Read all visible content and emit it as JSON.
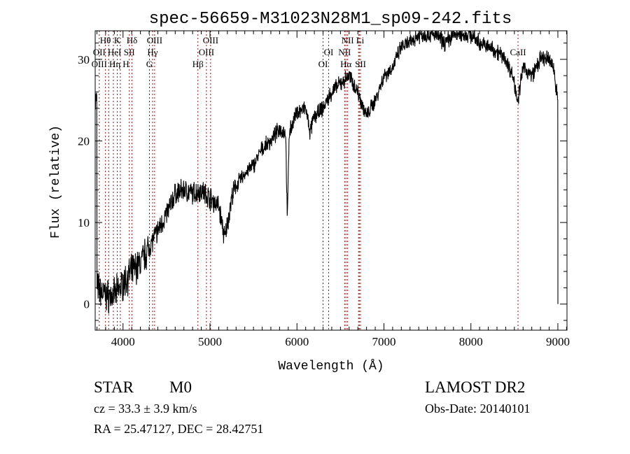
{
  "chart_data": {
    "type": "line",
    "title": "spec-56659-M31023N28M1_sp09-242.fits",
    "xlabel": "Wavelength (Å)",
    "ylabel": "Flux (relative)",
    "xlim": [
      3680,
      9105
    ],
    "ylim": [
      -3.2,
      33.5
    ],
    "xticks": [
      4000,
      5000,
      6000,
      7000,
      8000,
      9000
    ],
    "yticks": [
      0,
      10,
      20,
      30
    ],
    "grid": false,
    "series": [
      {
        "name": "flux",
        "approx_continuum": [
          [
            3700,
            2
          ],
          [
            3800,
            1
          ],
          [
            3900,
            1
          ],
          [
            4000,
            2.5
          ],
          [
            4100,
            4
          ],
          [
            4200,
            5
          ],
          [
            4300,
            7
          ],
          [
            4400,
            9
          ],
          [
            4500,
            11
          ],
          [
            4600,
            13.5
          ],
          [
            4700,
            14
          ],
          [
            4800,
            13.5
          ],
          [
            4900,
            14
          ],
          [
            5000,
            13
          ],
          [
            5100,
            12
          ],
          [
            5170,
            8
          ],
          [
            5250,
            13
          ],
          [
            5300,
            14.5
          ],
          [
            5400,
            16
          ],
          [
            5500,
            17
          ],
          [
            5600,
            19
          ],
          [
            5700,
            20
          ],
          [
            5800,
            21.5
          ],
          [
            5870,
            21
          ],
          [
            5890,
            10
          ],
          [
            5910,
            21
          ],
          [
            6000,
            23.5
          ],
          [
            6100,
            24
          ],
          [
            6150,
            21
          ],
          [
            6200,
            23
          ],
          [
            6300,
            24
          ],
          [
            6400,
            26
          ],
          [
            6500,
            27
          ],
          [
            6600,
            28
          ],
          [
            6700,
            26
          ],
          [
            6800,
            23
          ],
          [
            6900,
            25
          ],
          [
            7000,
            28
          ],
          [
            7100,
            29
          ],
          [
            7200,
            31.5
          ],
          [
            7300,
            32
          ],
          [
            7400,
            33
          ],
          [
            7500,
            33
          ],
          [
            7600,
            33
          ],
          [
            7700,
            32
          ],
          [
            7800,
            33
          ],
          [
            7900,
            33
          ],
          [
            8000,
            33
          ],
          [
            8100,
            32
          ],
          [
            8200,
            31.5
          ],
          [
            8300,
            31
          ],
          [
            8400,
            30
          ],
          [
            8480,
            28
          ],
          [
            8542,
            25
          ],
          [
            8600,
            29
          ],
          [
            8700,
            28
          ],
          [
            8800,
            30
          ],
          [
            8900,
            30
          ],
          [
            8950,
            29
          ],
          [
            9000,
            25
          ]
        ],
        "end_drop_to": 0
      }
    ],
    "lines": [
      3727,
      3798,
      3835,
      3889,
      3934,
      3969,
      4072,
      4102,
      4304,
      4340,
      4363,
      4861,
      4959,
      5007,
      6300,
      6364,
      6548,
      6563,
      6583,
      6708,
      6717,
      6731,
      8542
    ],
    "annotations": [
      {
        "text": "Hθ",
        "wavelength": 3798
      },
      {
        "text": "K",
        "wavelength": 3934
      },
      {
        "text": "Hδ",
        "wavelength": 4102
      },
      {
        "text": "OIII",
        "wavelength": 4363
      },
      {
        "text": "OIII",
        "wavelength": 5007
      },
      {
        "text": "NII",
        "wavelength": 6583
      },
      {
        "text": "Li",
        "wavelength": 6708
      },
      {
        "text": "OII",
        "wavelength": 3727
      },
      {
        "text": "HeI",
        "wavelength": 3889
      },
      {
        "text": "SII",
        "wavelength": 4072
      },
      {
        "text": "Hγ",
        "wavelength": 4340
      },
      {
        "text": "OIII",
        "wavelength": 4959
      },
      {
        "text": "OI",
        "wavelength": 6364
      },
      {
        "text": "NII",
        "wavelength": 6548
      },
      {
        "text": "CaII",
        "wavelength": 8542
      },
      {
        "text": "OIII",
        "wavelength": 3727
      },
      {
        "text": "Hη",
        "wavelength": 3835
      },
      {
        "text": "H",
        "wavelength": 3969
      },
      {
        "text": "G",
        "wavelength": 4304
      },
      {
        "text": "Hβ",
        "wavelength": 4861
      },
      {
        "text": "OI",
        "wavelength": 6300
      },
      {
        "text": "Hα",
        "wavelength": 6563
      },
      {
        "text": "SII",
        "wavelength": 6731
      }
    ],
    "colors": {
      "spectrum": "#000000",
      "lines": "#8b1a1a"
    }
  },
  "info": {
    "class": "STAR",
    "subclass": "M0",
    "survey": "LAMOST DR2",
    "cz": "cz = 33.3 ± 3.9 km/s",
    "obs_date": "Obs-Date: 20140101",
    "coords": "RA =  25.47127, DEC =  28.42751"
  }
}
